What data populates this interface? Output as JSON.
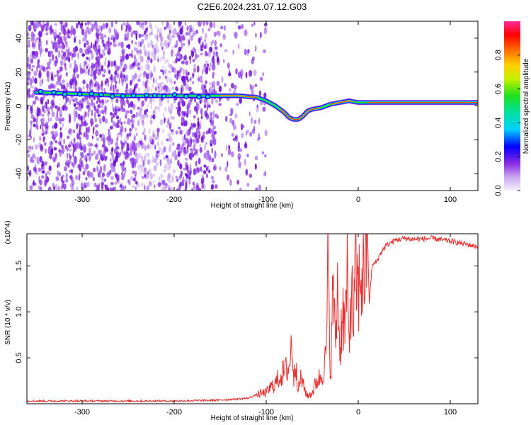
{
  "title": "C2E6.2024.231.07.12.G03",
  "chart_data": [
    {
      "type": "heatmap",
      "xlabel": "Height of straight line (km)",
      "ylabel": "Frequency (Hz)",
      "xlim": [
        -360,
        130
      ],
      "ylim": [
        -50,
        50
      ],
      "xticks": [
        -300,
        -200,
        -100,
        0,
        100
      ],
      "xtick_labels": [
        "-300",
        "-200",
        "-100",
        "0",
        "100"
      ],
      "yticks": [
        -40,
        -20,
        0,
        20,
        40
      ],
      "ytick_labels": [
        "-40",
        "-20",
        "0",
        "20",
        "40"
      ],
      "colorbar": {
        "label": "Normalized spectral amplitude",
        "range": [
          0,
          1
        ],
        "ticks": [
          0.0,
          0.2,
          0.4,
          0.6,
          0.8
        ],
        "tick_labels": [
          "0.0",
          "0.2",
          "0.4",
          "0.6",
          "0.8"
        ],
        "colors": [
          "#f2ecf9",
          "#c9a8f0",
          "#8a2be2",
          "#0000ff",
          "#00d0ff",
          "#00e060",
          "#e8e800",
          "#ff8000",
          "#ff0000",
          "#ff1493"
        ]
      },
      "ridge": {
        "x": [
          -350,
          -300,
          -250,
          -200,
          -160,
          -130,
          -110,
          -100,
          -90,
          -80,
          -75,
          -70,
          -65,
          -60,
          -55,
          -50,
          -40,
          -30,
          -20,
          -10,
          0,
          50,
          100,
          130
        ],
        "y": [
          8,
          7,
          6,
          6,
          6,
          6,
          5,
          3,
          0,
          -4,
          -7,
          -8,
          -8,
          -6,
          -3,
          -2,
          -1,
          1,
          2,
          3,
          2,
          2,
          2,
          2
        ]
      }
    },
    {
      "type": "line",
      "xlabel": "Height of straight line (km)",
      "ylabel": "SNR (10 * v/v)",
      "y_multiplier": "(x10^4)",
      "xlim": [
        -360,
        130
      ],
      "ylim": [
        0,
        1.85
      ],
      "xticks": [
        -300,
        -200,
        -100,
        0,
        100
      ],
      "xtick_labels": [
        "-300",
        "-200",
        "-100",
        "0",
        "100"
      ],
      "yticks": [
        0.5,
        1.0,
        1.5
      ],
      "ytick_labels": [
        "0.5",
        "1.0",
        "1.5"
      ],
      "series": [
        {
          "color": "#e83030",
          "x": [
            -360,
            -300,
            -200,
            -150,
            -120,
            -110,
            -100,
            -95,
            -90,
            -85,
            -80,
            -75,
            -72,
            -70,
            -68,
            -65,
            -62,
            -60,
            -55,
            -50,
            -45,
            -40,
            -35,
            -33,
            -30,
            -27,
            -25,
            -22,
            -20,
            -17,
            -15,
            -12,
            -10,
            -8,
            -5,
            -3,
            0,
            3,
            5,
            8,
            10,
            12,
            15,
            20,
            25,
            30,
            40,
            50,
            60,
            80,
            100,
            110,
            120,
            130
          ],
          "y": [
            0.03,
            0.03,
            0.03,
            0.04,
            0.06,
            0.1,
            0.12,
            0.18,
            0.22,
            0.3,
            0.35,
            0.4,
            0.7,
            0.25,
            0.5,
            0.15,
            0.3,
            0.2,
            0.08,
            0.12,
            0.25,
            0.3,
            0.5,
            1.45,
            0.3,
            1.4,
            0.6,
            1.35,
            0.5,
            1.1,
            0.8,
            1.3,
            0.6,
            1.25,
            0.9,
            1.4,
            1.2,
            1.45,
            1.3,
            1.6,
            1.85,
            1.1,
            1.5,
            1.55,
            1.65,
            1.72,
            1.78,
            1.8,
            1.79,
            1.8,
            1.77,
            1.75,
            1.73,
            1.71
          ]
        }
      ]
    }
  ]
}
